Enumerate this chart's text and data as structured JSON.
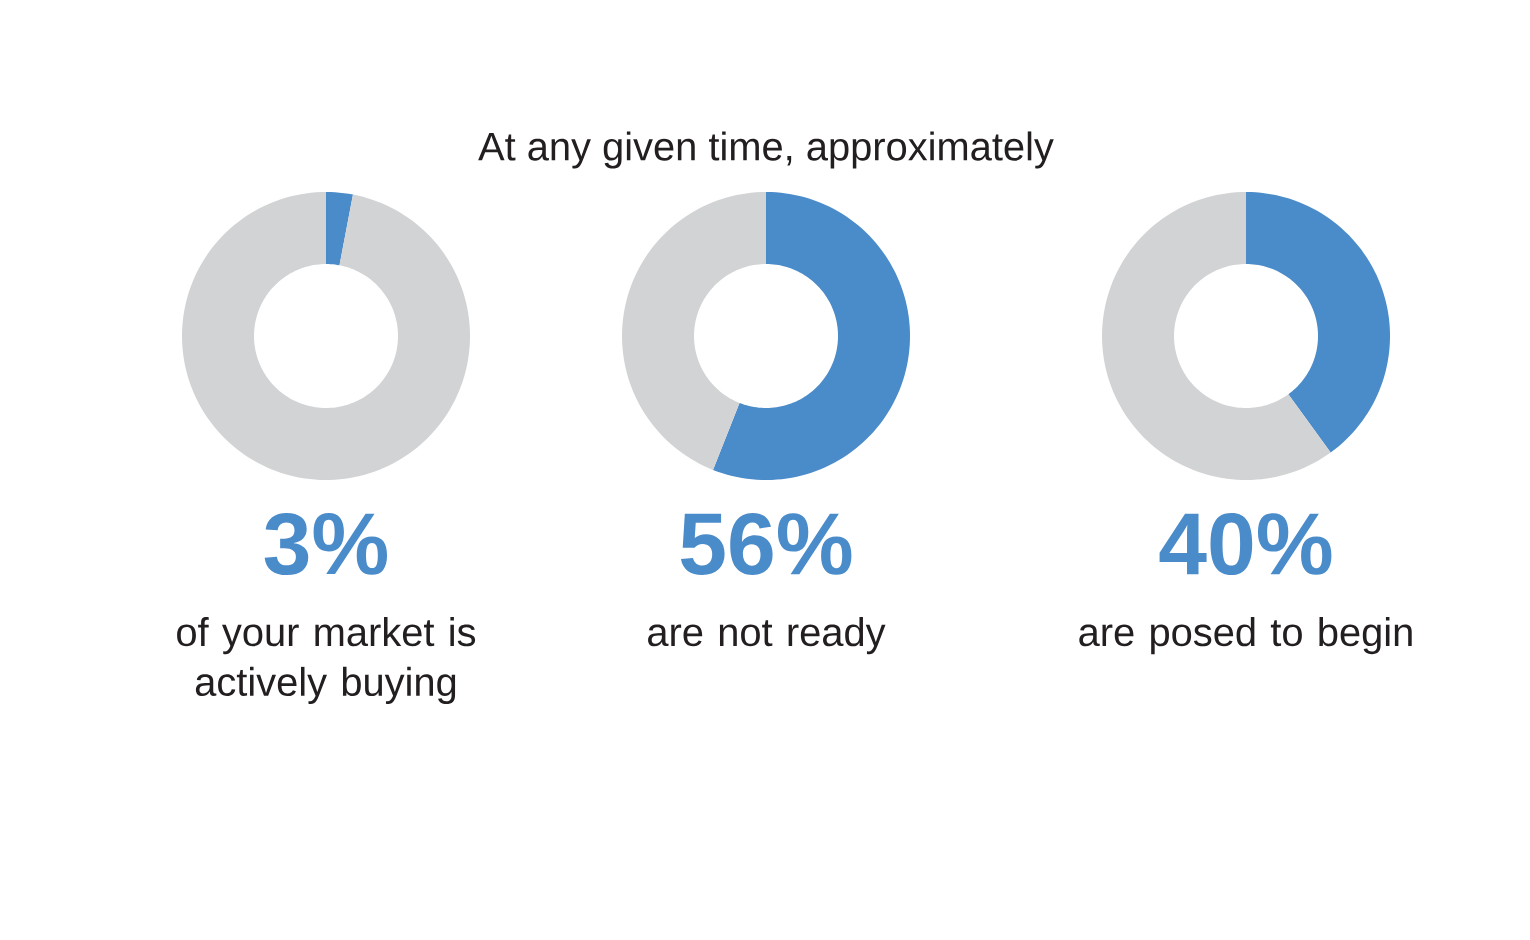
{
  "chart_data": [
    {
      "type": "donut",
      "categories": [
        null,
        null
      ],
      "values": [
        3,
        97
      ],
      "colors": [
        "#4a8bca",
        "#d1d3d4"
      ],
      "annotations": [
        "3%",
        "of your market is actively buying"
      ]
    },
    {
      "type": "donut",
      "title": "At any given time, approximately",
      "categories": [
        null,
        null
      ],
      "values": [
        56,
        44
      ],
      "colors": [
        "#4a8bca",
        "#d1d3d4"
      ],
      "annotations": [
        "56%",
        "are not ready"
      ]
    },
    {
      "type": "donut",
      "categories": [
        null,
        null
      ],
      "values": [
        40,
        60
      ],
      "colors": [
        "#4a8bca",
        "#d1d3d4"
      ],
      "annotations": [
        "40%",
        "are posed to begin"
      ]
    }
  ]
}
